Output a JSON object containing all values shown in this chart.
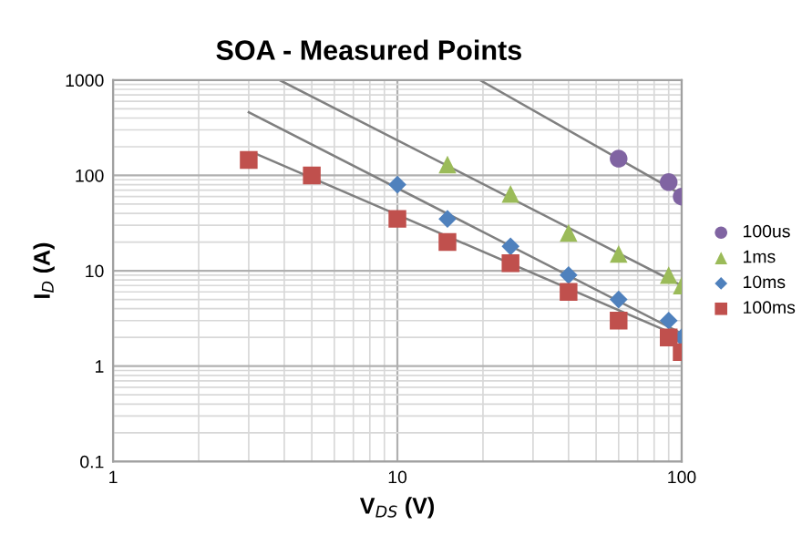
{
  "chart_data": {
    "type": "scatter",
    "title": "SOA - Measured Points",
    "xlabel": "V$_{DS}$ (V)",
    "ylabel": "I$_{D}$ (A)",
    "log": "xy",
    "xlim": [
      1,
      100
    ],
    "ylim": [
      0.1,
      1000
    ],
    "xticks": [
      1,
      10,
      100
    ],
    "yticks": [
      0.1,
      1,
      10,
      100,
      1000
    ],
    "grid": true,
    "legend": "right",
    "series": [
      {
        "name": "100us",
        "color": "#8064a2",
        "marker": "circle",
        "x": [
          60,
          90,
          100
        ],
        "values": [
          150,
          85,
          60
        ]
      },
      {
        "name": "1ms",
        "color": "#9bbb59",
        "marker": "triangle",
        "x": [
          15,
          25,
          40,
          60,
          90,
          100
        ],
        "values": [
          130,
          64,
          25,
          15,
          9,
          7
        ]
      },
      {
        "name": "10ms",
        "color": "#4f81bd",
        "marker": "diamond",
        "x": [
          10,
          15,
          25,
          40,
          60,
          90,
          100
        ],
        "values": [
          80,
          35,
          18,
          9,
          5,
          3,
          2
        ]
      },
      {
        "name": "100ms",
        "color": "#c0504d",
        "marker": "square",
        "x": [
          3,
          5,
          10,
          15,
          25,
          40,
          60,
          90,
          100
        ],
        "values": [
          145,
          100,
          35,
          20,
          12,
          6,
          3,
          2,
          1.4
        ]
      },
      {
        "type": "line",
        "color": "#808080",
        "marker": "none",
        "x": [
          19.5,
          100
        ],
        "values": [
          1000,
          63
        ]
      },
      {
        "type": "line",
        "color": "#808080",
        "marker": "none",
        "x": [
          3.85,
          100
        ],
        "values": [
          1000,
          7
        ]
      },
      {
        "type": "line",
        "color": "#808080",
        "marker": "none",
        "x": [
          3,
          100
        ],
        "values": [
          460,
          2.2
        ]
      },
      {
        "type": "line",
        "color": "#808080",
        "marker": "none",
        "x": [
          3.16,
          100
        ],
        "values": [
          170,
          2.0
        ]
      }
    ]
  }
}
